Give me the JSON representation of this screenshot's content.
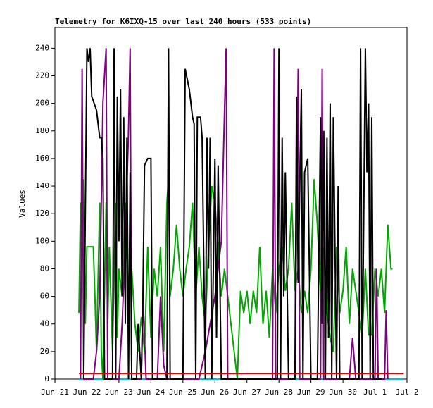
{
  "chart_data": {
    "type": "line",
    "title": "Telemetry for K6IXQ-15 over last 240 hours (533 points)",
    "ylabel": "Values",
    "xlim": [
      0,
      11
    ],
    "xticks": [
      {
        "value": 0,
        "label": "Jun 21"
      },
      {
        "value": 1,
        "label": "Jun 22"
      },
      {
        "value": 2,
        "label": "Jun 23"
      },
      {
        "value": 3,
        "label": "Jun 24"
      },
      {
        "value": 4,
        "label": "Jun 25"
      },
      {
        "value": 5,
        "label": "Jun 26"
      },
      {
        "value": 6,
        "label": "Jun 27"
      },
      {
        "value": 7,
        "label": "Jun 28"
      },
      {
        "value": 8,
        "label": "Jun 29"
      },
      {
        "value": 9,
        "label": "Jun 30"
      },
      {
        "value": 10,
        "label": "Jul 1"
      },
      {
        "value": 11,
        "label": "Jul 2"
      }
    ],
    "ylim": [
      0,
      255
    ],
    "yticks": [
      0,
      20,
      40,
      60,
      80,
      100,
      120,
      140,
      160,
      180,
      200,
      220,
      240
    ],
    "series": [
      {
        "color": "#00c0e0",
        "x": [
          0.75,
          10.9
        ],
        "values": [
          0,
          0
        ]
      },
      {
        "color": "#00a800",
        "x": [
          0.75,
          0.8,
          0.85,
          0.9,
          0.95,
          1.0,
          1.1,
          1.2,
          1.25,
          1.3,
          1.4,
          1.45,
          1.5,
          1.6,
          1.65,
          1.7,
          1.8,
          1.85,
          1.9,
          1.95,
          2.0,
          2.1,
          2.2,
          2.3,
          2.4,
          2.5,
          2.6,
          2.7,
          2.8,
          2.9,
          3.0,
          3.1,
          3.2,
          3.3,
          3.4,
          3.5,
          3.55,
          3.6,
          3.7,
          3.8,
          3.9,
          4.0,
          4.1,
          4.2,
          4.3,
          4.4,
          4.5,
          4.6,
          4.7,
          4.8,
          4.9,
          5.0,
          5.1,
          5.2,
          5.3,
          5.4,
          5.5,
          5.6,
          5.7,
          5.8,
          5.9,
          6.0,
          6.1,
          6.2,
          6.3,
          6.4,
          6.5,
          6.6,
          6.7,
          6.8,
          6.9,
          7.0,
          7.1,
          7.2,
          7.3,
          7.4,
          7.5,
          7.6,
          7.7,
          7.8,
          7.9,
          8.0,
          8.1,
          8.2,
          8.3,
          8.4,
          8.5,
          8.6,
          8.7,
          8.8,
          8.9,
          9.0,
          9.1,
          9.2,
          9.3,
          9.4,
          9.5,
          9.6,
          9.7,
          9.8,
          9.9,
          10.0,
          10.1,
          10.2,
          10.3,
          10.4,
          10.5,
          10.55
        ],
        "values": [
          48,
          128,
          120,
          145,
          40,
          96,
          96,
          96,
          60,
          20,
          128,
          20,
          0,
          128,
          40,
          96,
          20,
          80,
          128,
          30,
          80,
          60,
          128,
          60,
          80,
          40,
          20,
          45,
          20,
          96,
          30,
          80,
          60,
          96,
          20,
          128,
          145,
          60,
          80,
          112,
          80,
          60,
          80,
          96,
          128,
          60,
          96,
          60,
          40,
          96,
          140,
          128,
          96,
          60,
          80,
          60,
          40,
          20,
          0,
          64,
          48,
          64,
          40,
          64,
          48,
          96,
          40,
          64,
          30,
          80,
          48,
          80,
          96,
          64,
          80,
          128,
          64,
          80,
          48,
          64,
          48,
          80,
          145,
          112,
          64,
          96,
          48,
          30,
          20,
          96,
          48,
          64,
          96,
          40,
          80,
          64,
          48,
          32,
          80,
          32,
          32,
          80,
          60,
          80,
          48,
          112,
          80,
          80
        ]
      },
      {
        "color": "#800080",
        "x": [
          0.8,
          0.85,
          0.9,
          1.0,
          1.2,
          1.3,
          1.4,
          1.5,
          1.6,
          1.65,
          2.0,
          2.1,
          2.2,
          2.3,
          2.35,
          2.4,
          2.7,
          2.75,
          2.85,
          3.2,
          3.3,
          3.4,
          3.5,
          4.5,
          4.7,
          5.0,
          5.2,
          5.3,
          5.35,
          5.4,
          6.8,
          6.85,
          6.9,
          7.5,
          7.6,
          7.65,
          8.3,
          8.35,
          8.4,
          9.2,
          9.3,
          9.4,
          10.0,
          10.05,
          10.1,
          10.3,
          10.35,
          10.4
        ],
        "values": [
          0,
          225,
          0,
          0,
          0,
          20,
          60,
          200,
          240,
          0,
          0,
          40,
          100,
          180,
          240,
          0,
          0,
          60,
          0,
          0,
          60,
          10,
          0,
          0,
          20,
          60,
          100,
          195,
          240,
          0,
          0,
          240,
          0,
          0,
          225,
          0,
          0,
          225,
          0,
          0,
          30,
          0,
          0,
          80,
          0,
          0,
          50,
          0
        ]
      },
      {
        "color": "#000000",
        "x": [
          0.9,
          0.95,
          1.0,
          1.05,
          1.1,
          1.15,
          1.3,
          1.4,
          1.45,
          1.5,
          1.55,
          1.6,
          1.8,
          1.85,
          1.9,
          1.95,
          2.0,
          2.05,
          2.1,
          2.15,
          2.2,
          2.25,
          2.3,
          2.35,
          2.4,
          2.55,
          2.6,
          2.7,
          2.75,
          2.8,
          2.9,
          3.0,
          3.05,
          3.5,
          3.55,
          3.6,
          3.65,
          4.0,
          4.07,
          4.2,
          4.3,
          4.35,
          4.4,
          4.45,
          4.55,
          4.6,
          4.7,
          4.75,
          4.8,
          4.85,
          4.9,
          5.0,
          5.05,
          5.1,
          5.2,
          6.95,
          7.0,
          7.05,
          7.1,
          7.15,
          7.2,
          7.3,
          7.5,
          7.55,
          7.6,
          7.7,
          7.75,
          7.8,
          7.9,
          8.0,
          8.2,
          8.3,
          8.35,
          8.4,
          8.45,
          8.5,
          8.55,
          8.6,
          8.65,
          8.7,
          8.8,
          8.85,
          8.9,
          9.5,
          9.55,
          9.6,
          9.7,
          9.75,
          9.8,
          9.85,
          9.9,
          9.95,
          10.2
        ],
        "values": [
          0,
          120,
          240,
          230,
          240,
          205,
          195,
          175,
          175,
          160,
          0,
          0,
          0,
          240,
          0,
          205,
          100,
          210,
          60,
          190,
          40,
          175,
          0,
          150,
          0,
          0,
          40,
          0,
          60,
          155,
          160,
          160,
          0,
          0,
          240,
          0,
          0,
          0,
          225,
          210,
          190,
          185,
          0,
          190,
          190,
          175,
          0,
          175,
          80,
          175,
          0,
          160,
          30,
          155,
          0,
          0,
          240,
          0,
          175,
          60,
          150,
          0,
          0,
          205,
          70,
          210,
          0,
          150,
          160,
          0,
          0,
          190,
          40,
          180,
          0,
          175,
          30,
          200,
          0,
          190,
          0,
          140,
          0,
          0,
          240,
          0,
          240,
          150,
          200,
          0,
          190,
          0,
          0
        ]
      },
      {
        "color": "#e00000",
        "x": [
          0.75,
          10.9
        ],
        "values": [
          4,
          4
        ]
      }
    ]
  }
}
